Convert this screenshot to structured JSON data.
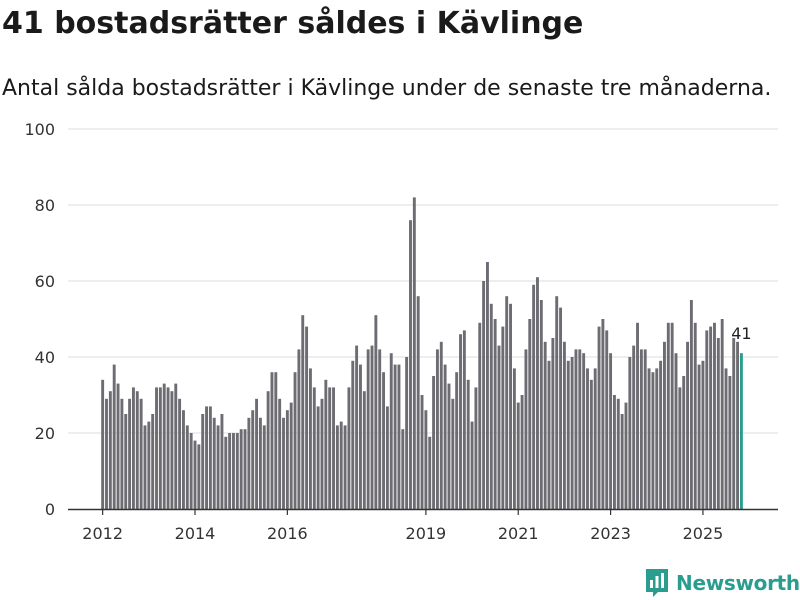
{
  "title": "41 bostadsrätter såldes i Kävlinge",
  "subtitle": "Antal sålda bostadsrätter i Kävlinge under de senaste tre månaderna.",
  "brand": {
    "name": "Newsworthy",
    "icon": "newsworthy-logo-icon"
  },
  "colors": {
    "bar": "#6d6c72",
    "highlight": "#2a9d8f",
    "grid": "#dddddd",
    "axis": "#333333",
    "text": "#333333"
  },
  "chart_data": {
    "type": "bar",
    "title": "41 bostadsrätter såldes i Kävlinge",
    "xlabel": "",
    "ylabel": "",
    "ylim": [
      0,
      100
    ],
    "yticks": [
      0,
      20,
      40,
      60,
      80,
      100
    ],
    "grid": true,
    "x_start": {
      "year": 2012,
      "month": 1
    },
    "xtick_labels": [
      {
        "label": "2012",
        "index": 0
      },
      {
        "label": "2014",
        "index": 24
      },
      {
        "label": "2016",
        "index": 48
      },
      {
        "label": "2019",
        "index": 84
      },
      {
        "label": "2021",
        "index": 108
      },
      {
        "label": "2023",
        "index": 132
      },
      {
        "label": "2025",
        "index": 156
      }
    ],
    "values": [
      34,
      29,
      31,
      38,
      33,
      29,
      25,
      29,
      32,
      31,
      29,
      22,
      23,
      25,
      32,
      32,
      33,
      32,
      31,
      33,
      29,
      26,
      22,
      20,
      18,
      17,
      25,
      27,
      27,
      24,
      22,
      25,
      19,
      20,
      20,
      20,
      21,
      21,
      24,
      26,
      29,
      24,
      22,
      31,
      36,
      36,
      29,
      24,
      26,
      28,
      36,
      42,
      51,
      48,
      37,
      32,
      27,
      29,
      34,
      32,
      32,
      22,
      23,
      22,
      32,
      39,
      43,
      38,
      31,
      42,
      43,
      51,
      42,
      36,
      27,
      41,
      38,
      38,
      21,
      40,
      76,
      82,
      56,
      30,
      26,
      19,
      35,
      42,
      44,
      38,
      33,
      29,
      36,
      46,
      47,
      34,
      23,
      32,
      49,
      60,
      65,
      54,
      50,
      43,
      48,
      56,
      54,
      37,
      28,
      30,
      42,
      50,
      59,
      61,
      55,
      44,
      39,
      45,
      56,
      53,
      44,
      39,
      40,
      42,
      42,
      41,
      37,
      34,
      37,
      48,
      50,
      47,
      41,
      30,
      29,
      25,
      28,
      40,
      43,
      49,
      42,
      42,
      37,
      36,
      37,
      39,
      44,
      49,
      49,
      41,
      32,
      35,
      44,
      55,
      49,
      38,
      39,
      47,
      48,
      49,
      45,
      50,
      37,
      35,
      45,
      44,
      41
    ],
    "highlight_index": 166,
    "highlight_label": "41"
  }
}
